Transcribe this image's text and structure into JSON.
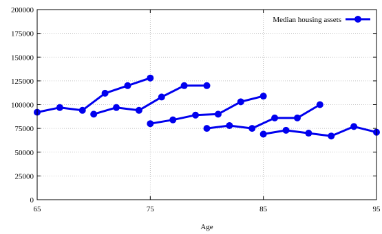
{
  "chart_data": {
    "type": "line",
    "title": "",
    "xlabel": "Age",
    "ylabel": "",
    "xlim": [
      65,
      95
    ],
    "ylim": [
      0,
      200000
    ],
    "xticks": [
      65,
      75,
      85,
      95
    ],
    "xtick_labels": [
      "65",
      "75",
      "85",
      "95"
    ],
    "yticks": [
      0,
      25000,
      50000,
      75000,
      100000,
      125000,
      150000,
      175000,
      200000
    ],
    "ytick_labels": [
      "0",
      "25000",
      "50000",
      "75000",
      "100000",
      "125000",
      "150000",
      "175000",
      "200000"
    ],
    "grid": true,
    "legend": {
      "placement": "top-right",
      "entries": [
        "Median housing assets"
      ]
    },
    "series": [
      {
        "name": "Median housing assets",
        "color": "#0000ee",
        "segments": [
          [
            [
              65,
              92000
            ],
            [
              67,
              97000
            ],
            [
              69,
              94000
            ],
            [
              71,
              112000
            ],
            [
              73,
              120000
            ],
            [
              75,
              128000
            ]
          ],
          [
            [
              70,
              90000
            ],
            [
              72,
              97000
            ],
            [
              74,
              94000
            ],
            [
              76,
              108000
            ],
            [
              78,
              120000
            ],
            [
              80,
              120000
            ]
          ],
          [
            [
              75,
              80000
            ],
            [
              77,
              84000
            ],
            [
              79,
              89000
            ],
            [
              81,
              90000
            ],
            [
              83,
              103000
            ],
            [
              85,
              109000
            ]
          ],
          [
            [
              80,
              75000
            ],
            [
              82,
              78000
            ],
            [
              84,
              75000
            ],
            [
              86,
              86000
            ],
            [
              88,
              86000
            ],
            [
              90,
              100000
            ]
          ],
          [
            [
              85,
              69000
            ],
            [
              87,
              73000
            ],
            [
              89,
              70000
            ],
            [
              91,
              67000
            ],
            [
              93,
              77000
            ],
            [
              95,
              71000
            ]
          ]
        ]
      }
    ]
  }
}
